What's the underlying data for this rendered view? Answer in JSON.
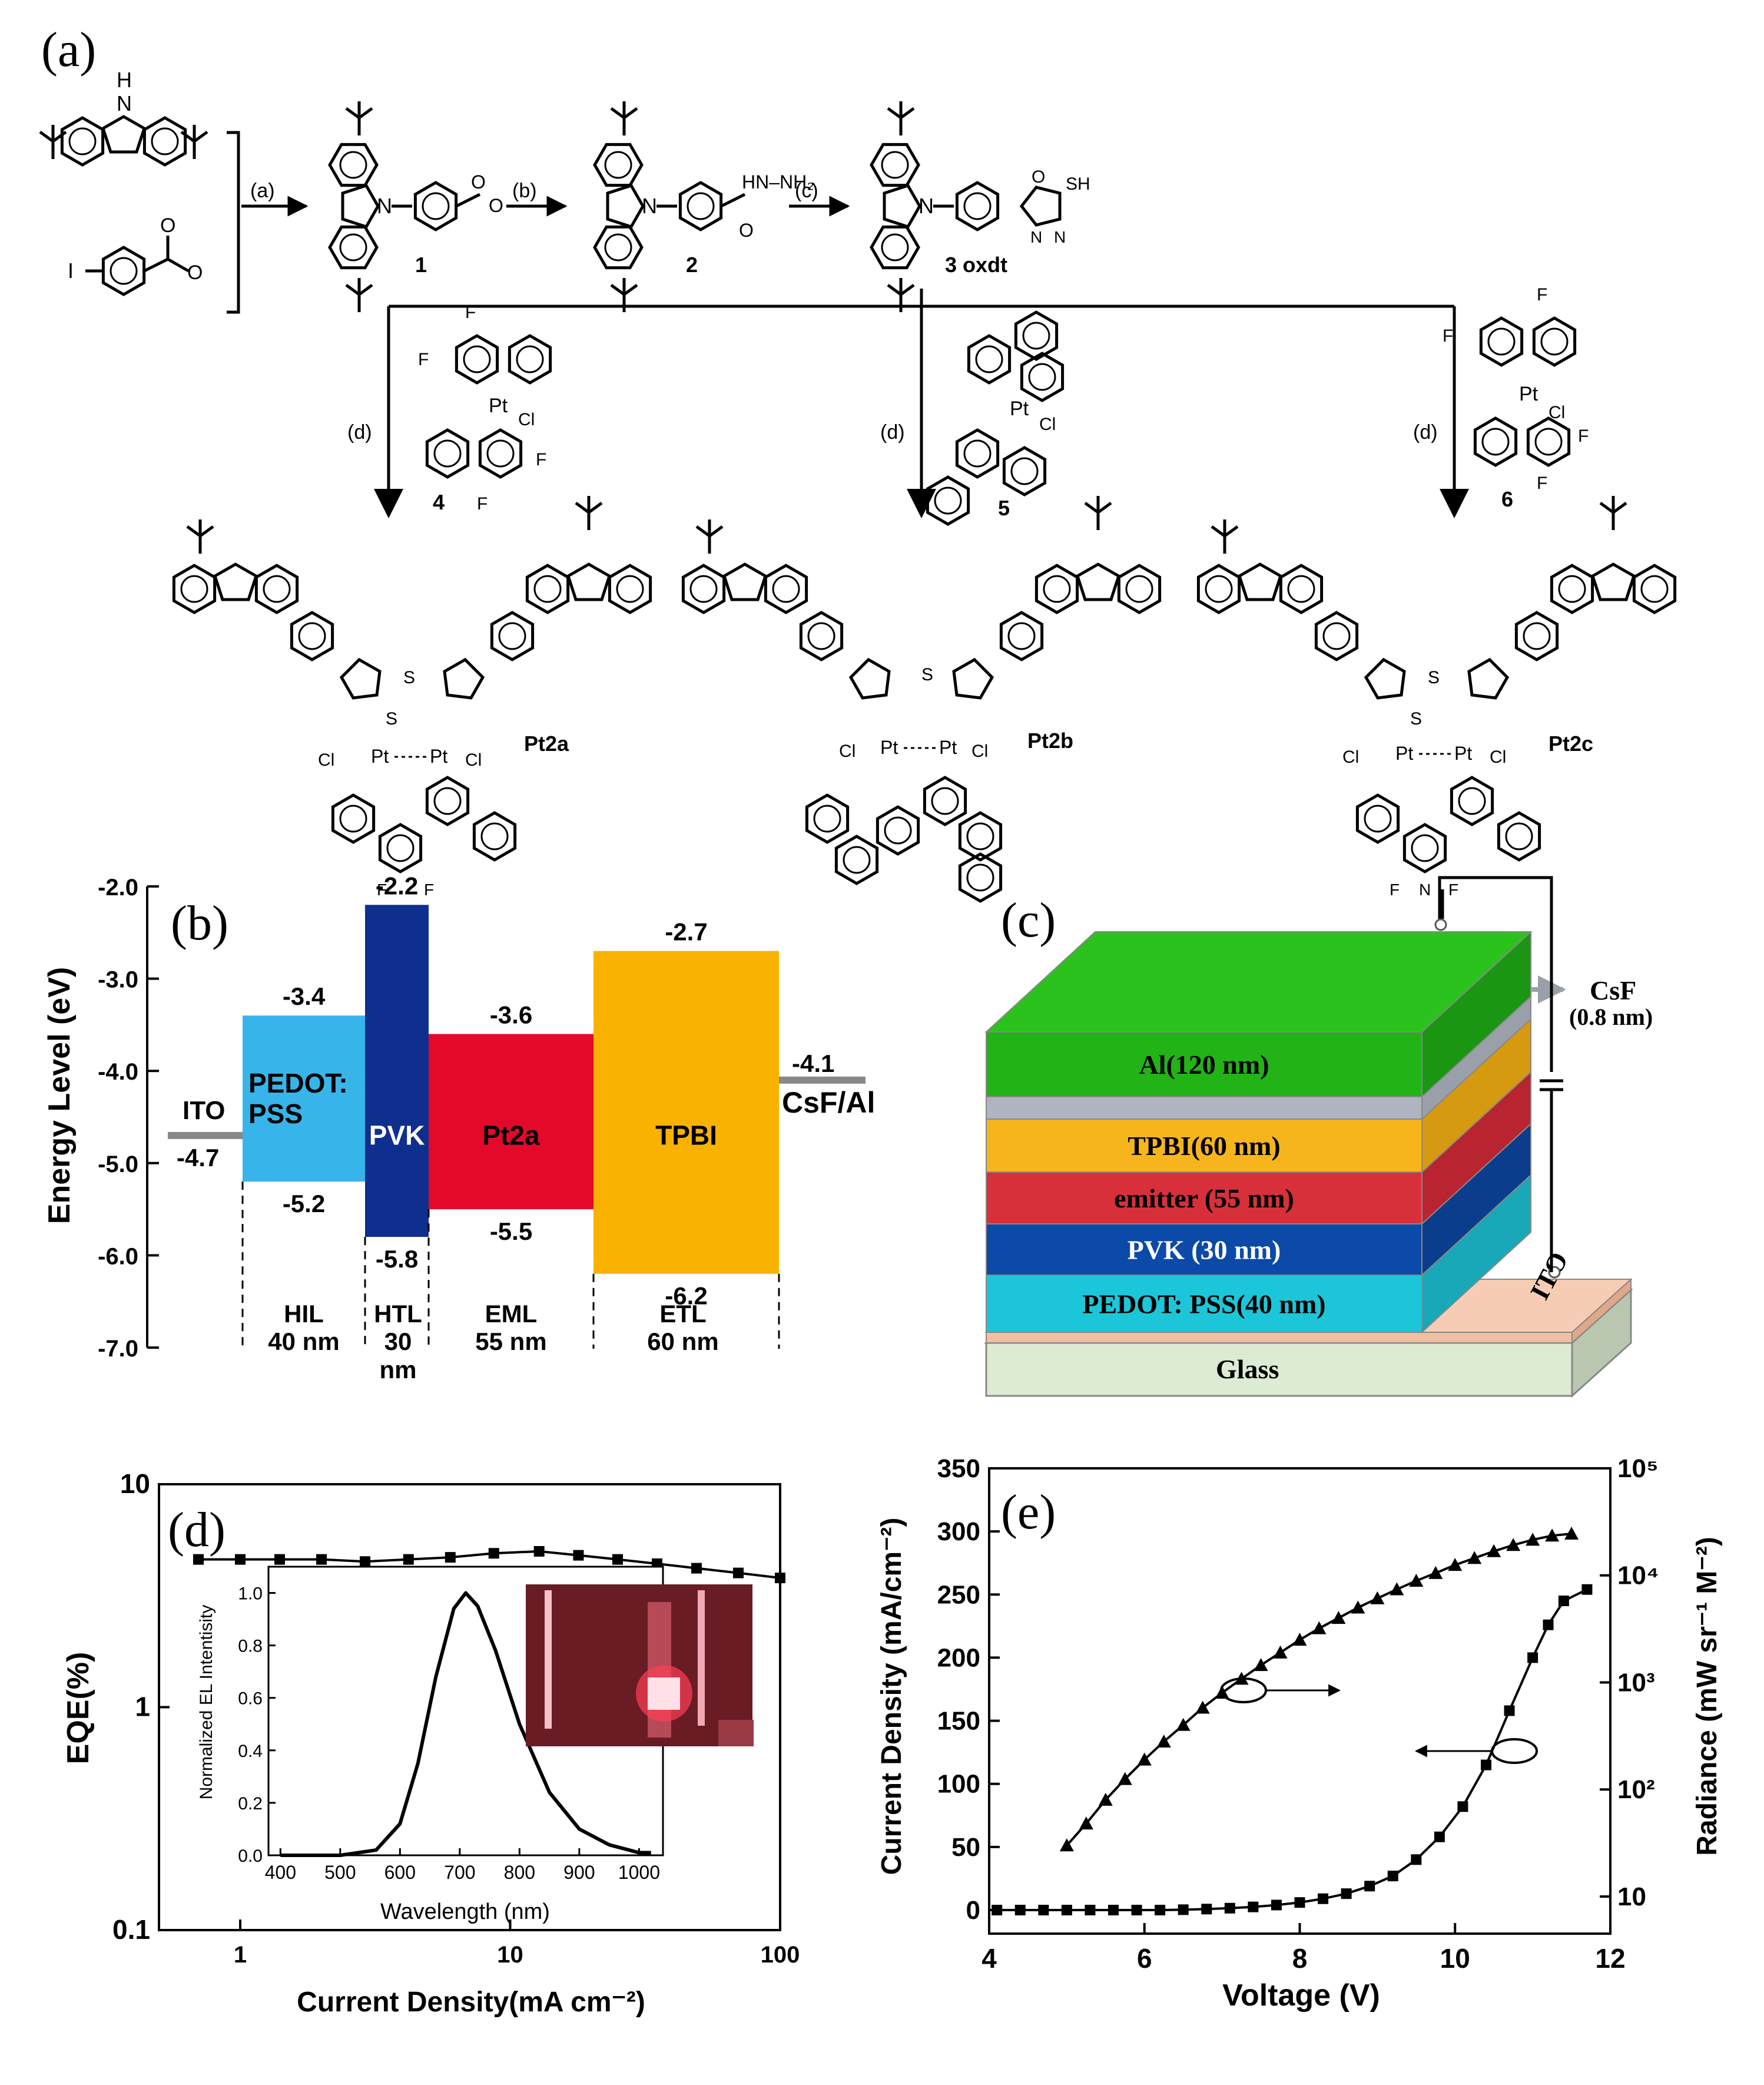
{
  "colors": {
    "ito": "#888888",
    "pedot": "#37b4e9",
    "pvk": "#0f2f8f",
    "pt2a": "#e4092a",
    "tpbi": "#f9b200",
    "green": "#22b316",
    "csf_gray": "#b0b4c0",
    "tpbi_dev": "#f6b51c",
    "emitter_dev": "#d8303a",
    "pvk_dev": "#0b4aa8",
    "pedot_dev": "#1cc6d8",
    "ito_dev": "#f6cdb4",
    "glass": "#dcebd4"
  },
  "panel_a": {
    "label": "(a)",
    "steps": [
      "(a)",
      "(b)",
      "(c)",
      "(d)",
      "(d)",
      "(d)"
    ],
    "compounds": [
      "1",
      "2",
      "3 oxdt",
      "4",
      "5",
      "6"
    ],
    "products": [
      "Pt2a",
      "Pt2b",
      "Pt2c"
    ],
    "atoms": {
      "H": "H",
      "N": "N",
      "O": "O",
      "I": "I",
      "S": "S",
      "SH": "SH",
      "F": "F",
      "Cl": "Cl",
      "Pt": "Pt",
      "hydrazide": "HN–NH₂"
    }
  },
  "panel_b": {
    "label": "(b)",
    "ylabel": "Energy Level (eV)",
    "yticks": [
      "-2.0",
      "-3.0",
      "-4.0",
      "-5.0",
      "-6.0",
      "-7.0"
    ],
    "ylim": [
      -7.0,
      -2.0
    ],
    "layers": [
      {
        "name": "PEDOT:",
        "name2": "PSS",
        "lumo": -3.4,
        "homo": -5.2,
        "lumo_label": "-3.4",
        "homo_label": "-5.2",
        "color": "#37b4e9"
      },
      {
        "name": "PVK",
        "lumo": -2.2,
        "homo": -5.8,
        "lumo_label": "-2.2",
        "homo_label": "-5.8",
        "color": "#0f2f8f"
      },
      {
        "name": "Pt2a",
        "lumo": -3.6,
        "homo": -5.5,
        "lumo_label": "-3.6",
        "homo_label": "-5.5",
        "color": "#e4092a"
      },
      {
        "name": "TPBI",
        "lumo": -2.7,
        "homo": -6.2,
        "lumo_label": "-2.7",
        "homo_label": "-6.2",
        "color": "#f9b200"
      }
    ],
    "ito": {
      "name": "ITO",
      "level": -4.7,
      "label": "-4.7"
    },
    "cathode": {
      "name": "CsF/Al",
      "level": -4.1,
      "label": "-4.1"
    },
    "roles": [
      {
        "role": "HIL",
        "thickness": "40 nm"
      },
      {
        "role": "HTL",
        "thickness": "30",
        "thickness2": "nm"
      },
      {
        "role": "EML",
        "thickness": "55 nm"
      },
      {
        "role": "ETL",
        "thickness": "60 nm"
      }
    ]
  },
  "panel_c": {
    "label": "(c)",
    "layers": [
      "Al(120 nm)",
      "TPBI(60 nm)",
      "emitter (55 nm)",
      "PVK (30 nm)",
      "PEDOT: PSS(40 nm)",
      "Glass"
    ],
    "csf": "CsF",
    "csf_thickness": "(0.8 nm)",
    "ito": "ITO"
  },
  "panel_d": {
    "label": "(d)",
    "xlabel": "Current Density(mA cm⁻²)",
    "ylabel": "EQE(%)",
    "xticks": [
      "1",
      "10",
      "100"
    ],
    "yticks": [
      "0.1",
      "1",
      "10"
    ],
    "inset": {
      "xlabel": "Wavelength (nm)",
      "ylabel": "Normalized EL Intentisity",
      "xticks": [
        "400",
        "500",
        "600",
        "700",
        "800",
        "900",
        "1000"
      ],
      "yticks": [
        "0.0",
        "0.2",
        "0.4",
        "0.6",
        "0.8",
        "1.0"
      ]
    }
  },
  "panel_e": {
    "label": "(e)",
    "xlabel": "Voltage (V)",
    "ylabel_left": "Current Density (mA/cm⁻²)",
    "ylabel_right": "Radiance (mW sr⁻¹ M⁻²)",
    "xticks": [
      "4",
      "6",
      "8",
      "10",
      "12"
    ],
    "yticks_left": [
      "0",
      "50",
      "100",
      "150",
      "200",
      "250",
      "300",
      "350"
    ],
    "yticks_right": [
      "10",
      "10²",
      "10³",
      "10⁴",
      "10⁵"
    ]
  },
  "chart_data": [
    {
      "type": "line",
      "panel": "d",
      "title": "",
      "xlabel": "Current Density(mA cm⁻²)",
      "ylabel": "EQE(%)",
      "xscale": "log",
      "yscale": "log",
      "xlim": [
        0.5,
        100
      ],
      "ylim": [
        0.1,
        10
      ],
      "x": [
        0.7,
        1.0,
        1.4,
        2.0,
        2.9,
        4.2,
        6.0,
        8.7,
        12.8,
        17.9,
        25.0,
        35.0,
        49.0,
        70.0,
        100.0
      ],
      "y": [
        4.6,
        4.6,
        4.6,
        4.6,
        4.5,
        4.6,
        4.7,
        4.9,
        5.0,
        4.8,
        4.6,
        4.4,
        4.2,
        4.0,
        3.8
      ]
    },
    {
      "type": "line",
      "panel": "d-inset",
      "title": "",
      "xlabel": "Wavelength (nm)",
      "ylabel": "Normalized EL Intentisity",
      "xlim": [
        380,
        1040
      ],
      "ylim": [
        0,
        1.1
      ],
      "x": [
        400,
        500,
        560,
        600,
        630,
        660,
        690,
        710,
        730,
        760,
        800,
        850,
        900,
        950,
        1000,
        1020
      ],
      "y": [
        0.0,
        0.0,
        0.02,
        0.12,
        0.35,
        0.68,
        0.94,
        1.0,
        0.95,
        0.78,
        0.5,
        0.24,
        0.1,
        0.04,
        0.01,
        0.01
      ]
    },
    {
      "type": "line",
      "panel": "e",
      "title": "",
      "xlabel": "Voltage (V)",
      "ylabel": "Current Density (mA/cm⁻²)",
      "xlim": [
        4,
        12
      ],
      "ylim": [
        0,
        350
      ],
      "series": [
        {
          "axis": "left",
          "x": [
            4.1,
            4.4,
            4.7,
            5.0,
            5.3,
            5.6,
            5.9,
            6.2,
            6.5,
            6.8,
            7.1,
            7.4,
            7.7,
            8.0,
            8.3,
            8.6,
            8.9,
            9.2,
            9.5,
            9.8,
            10.1,
            10.4,
            10.7,
            11.0,
            11.2,
            11.4,
            11.7
          ],
          "y": [
            0,
            0,
            0,
            0,
            0,
            0,
            0,
            0,
            0.3,
            0.8,
            1.5,
            2.5,
            4,
            6,
            9,
            13,
            19,
            27,
            40,
            58,
            82,
            115,
            158,
            200,
            226,
            245,
            254
          ]
        },
        {
          "axis": "right",
          "scale": "log",
          "ylim": [
            4.5,
            100000
          ],
          "x": [
            5.0,
            5.25,
            5.5,
            5.75,
            6.0,
            6.25,
            6.5,
            6.75,
            7.0,
            7.25,
            7.5,
            7.75,
            8.0,
            8.25,
            8.5,
            8.75,
            9.0,
            9.25,
            9.5,
            9.75,
            10.0,
            10.25,
            10.5,
            10.75,
            11.0,
            11.25,
            11.5
          ],
          "y": [
            30,
            48,
            80,
            125,
            190,
            280,
            400,
            580,
            800,
            1080,
            1450,
            1900,
            2500,
            3200,
            4000,
            5000,
            6100,
            7400,
            8900,
            10500,
            12500,
            14500,
            16800,
            19200,
            21500,
            23500,
            24500
          ]
        }
      ]
    }
  ]
}
